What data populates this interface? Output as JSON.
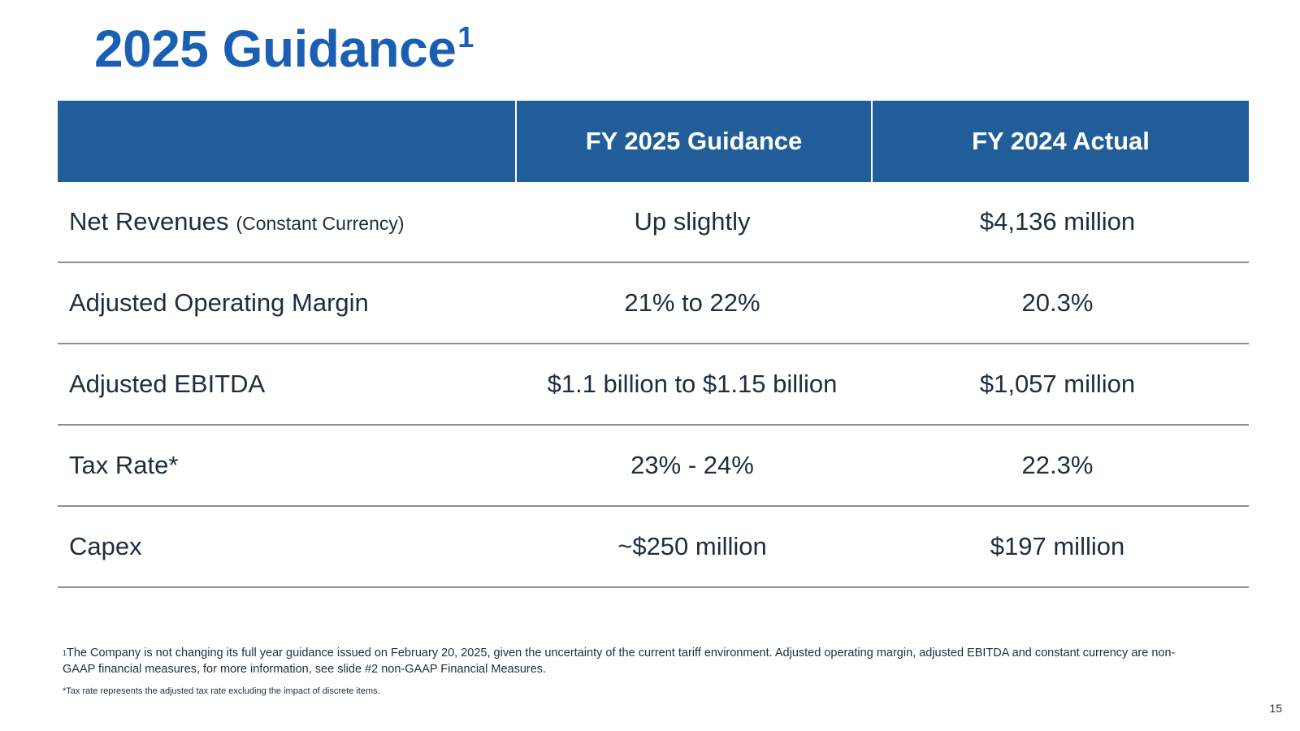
{
  "slide": {
    "title": "2025 Guidance",
    "title_superscript": "1",
    "page_number": "15"
  },
  "table": {
    "headers": [
      "",
      "FY 2025 Guidance",
      "FY 2024 Actual"
    ],
    "rows": [
      {
        "metric": "Net Revenues",
        "qualifier": "(Constant Currency)",
        "guidance": "Up slightly",
        "actual": "$4,136 million"
      },
      {
        "metric": "Adjusted Operating Margin",
        "qualifier": "",
        "guidance": "21% to 22%",
        "actual": "20.3%"
      },
      {
        "metric": "Adjusted EBITDA",
        "qualifier": "",
        "guidance": "$1.1 billion to $1.15 billion",
        "actual": "$1,057 million"
      },
      {
        "metric": "Tax Rate*",
        "qualifier": "",
        "guidance": "23% - 24%",
        "actual": "22.3%"
      },
      {
        "metric": "Capex",
        "qualifier": "",
        "guidance": "~$250 million",
        "actual": "$197 million"
      }
    ]
  },
  "footnotes": {
    "note1_marker": "1",
    "note1": "The Company is not changing its full year guidance issued on February 20, 2025, given the uncertainty of the current tariff environment. Adjusted operating margin, adjusted EBITDA and constant currency are non-GAAP financial measures, for more information, see slide #2 non-GAAP Financial Measures.",
    "note2": "*Tax rate represents the adjusted tax rate excluding the impact of discrete items."
  },
  "colors": {
    "title": "#1a5fb4",
    "header_background": "#215e99",
    "header_text": "#ffffff",
    "row_divider": "#8a8f96",
    "body_text": "#1f2d3d"
  }
}
